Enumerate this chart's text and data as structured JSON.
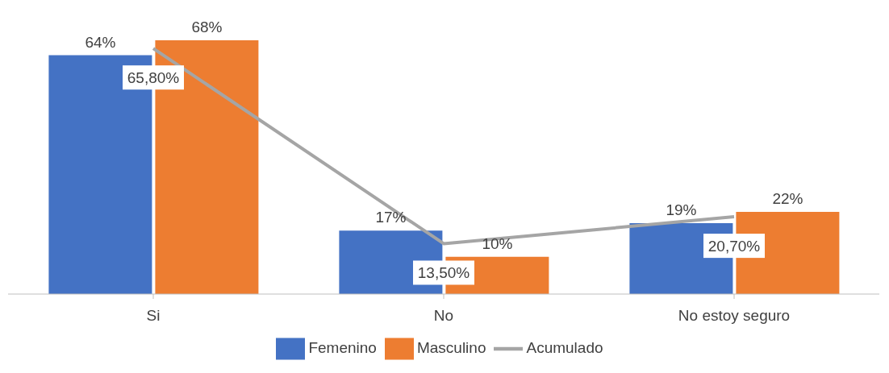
{
  "chart_data": {
    "type": "bar",
    "categories": [
      "Si",
      "No",
      "No estoy seguro"
    ],
    "series": [
      {
        "name": "Femenino",
        "color": "#4472c4",
        "values": [
          64,
          17,
          19
        ],
        "value_labels": [
          "64%",
          "17%",
          "19%"
        ]
      },
      {
        "name": "Masculino",
        "color": "#ed7d31",
        "values": [
          68,
          10,
          22
        ],
        "value_labels": [
          "68%",
          "10%",
          "22%"
        ]
      },
      {
        "name": "Acumulado",
        "type": "line",
        "color": "#a5a5a5",
        "values": [
          65.8,
          13.5,
          20.7
        ],
        "value_labels": [
          "65,80%",
          "13,50%",
          "20,70%"
        ]
      }
    ],
    "grid": false,
    "legend": "bottom",
    "marker": "none"
  }
}
